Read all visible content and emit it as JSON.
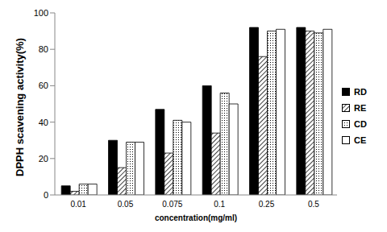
{
  "chart_data": {
    "type": "bar",
    "categories": [
      "0.01",
      "0.05",
      "0.075",
      "0.1",
      "0.25",
      "0.5"
    ],
    "series": [
      {
        "name": "RD",
        "color": "#000000",
        "values": [
          5,
          30,
          47,
          60,
          92,
          92
        ]
      },
      {
        "name": "RE",
        "color": "#ffffff",
        "values": [
          2,
          15,
          23,
          34,
          76,
          90
        ]
      },
      {
        "name": "CD",
        "color": "#ffffff",
        "values": [
          6,
          29,
          41,
          56,
          90,
          89
        ]
      },
      {
        "name": "CE",
        "color": "#ffffff",
        "values": [
          6,
          29,
          40,
          50,
          91,
          91
        ]
      }
    ],
    "y_label": "DPPH scavening activity(%)",
    "x_label": "concentration(mg/ml)",
    "ylim": [
      0,
      100
    ],
    "yticks": [
      0,
      20,
      40,
      60,
      80,
      100
    ],
    "grid": false,
    "legend": "right"
  }
}
